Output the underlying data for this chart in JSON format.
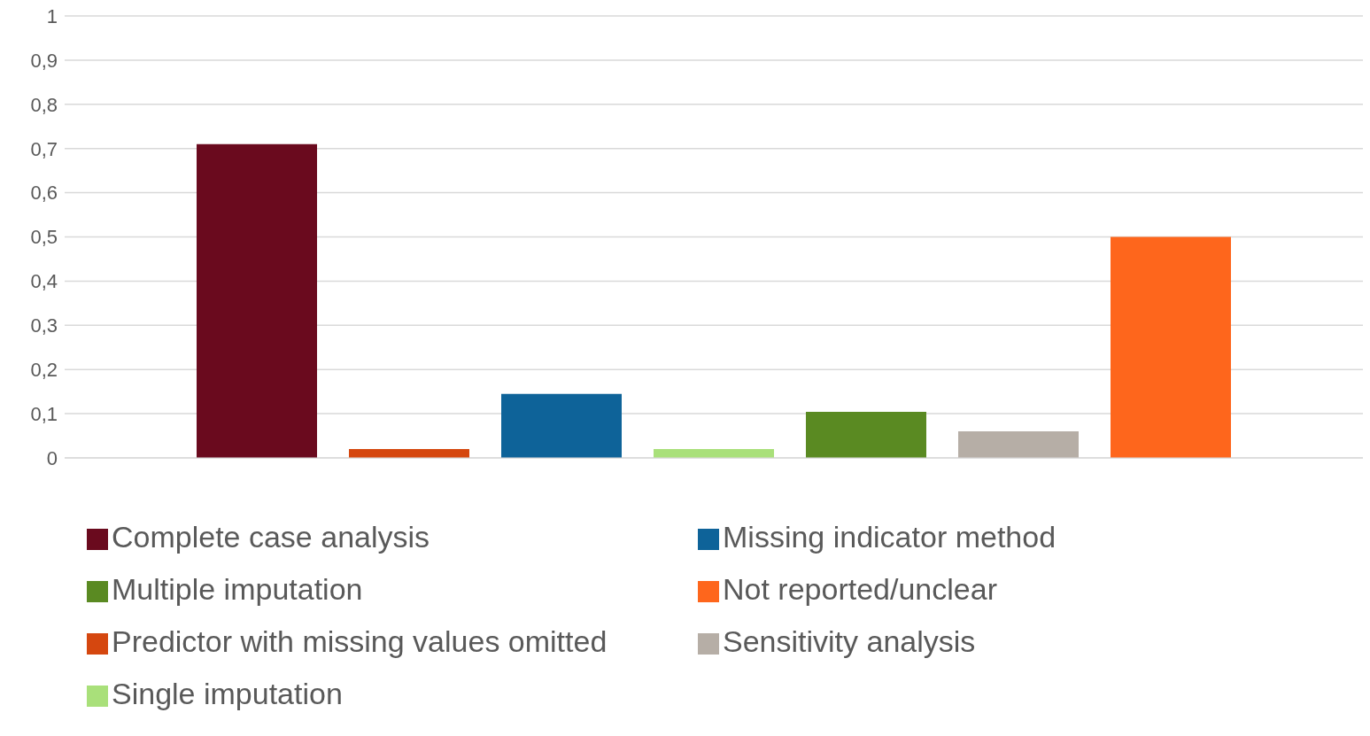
{
  "chart_data": {
    "type": "bar",
    "categories": [
      null
    ],
    "series": [
      {
        "name": "Complete case analysis",
        "color": "#6a0a1e",
        "values": [
          0.71
        ]
      },
      {
        "name": "Predictor with missing values omitted",
        "color": "#d5470f",
        "values": [
          0.02
        ]
      },
      {
        "name": "Missing indicator method",
        "color": "#0e6399",
        "values": [
          0.145
        ]
      },
      {
        "name": "Single imputation",
        "color": "#a9e07a",
        "values": [
          0.02
        ]
      },
      {
        "name": "Multiple imputation",
        "color": "#5a8a22",
        "values": [
          0.104
        ]
      },
      {
        "name": "Sensitivity analysis",
        "color": "#b6aea6",
        "values": [
          0.06
        ]
      },
      {
        "name": "Not reported/unclear",
        "color": "#fe661c",
        "values": [
          0.5
        ]
      }
    ],
    "ylim": [
      0,
      1
    ],
    "yticks": [
      0,
      {
        "value": 0.1,
        "label": "0,1"
      },
      {
        "value": 0.2,
        "label": "0,2"
      },
      {
        "value": 0.3,
        "label": "0,3"
      },
      {
        "value": 0.4,
        "label": "0,4"
      },
      {
        "value": 0.5,
        "label": "0,5"
      },
      {
        "value": 0.6,
        "label": "0,6"
      },
      {
        "value": 0.7,
        "label": "0,7"
      },
      {
        "value": 0.8,
        "label": "0,8"
      },
      {
        "value": 0.9,
        "label": "0,9"
      },
      1
    ],
    "grid": "y",
    "legend": "bottom"
  }
}
